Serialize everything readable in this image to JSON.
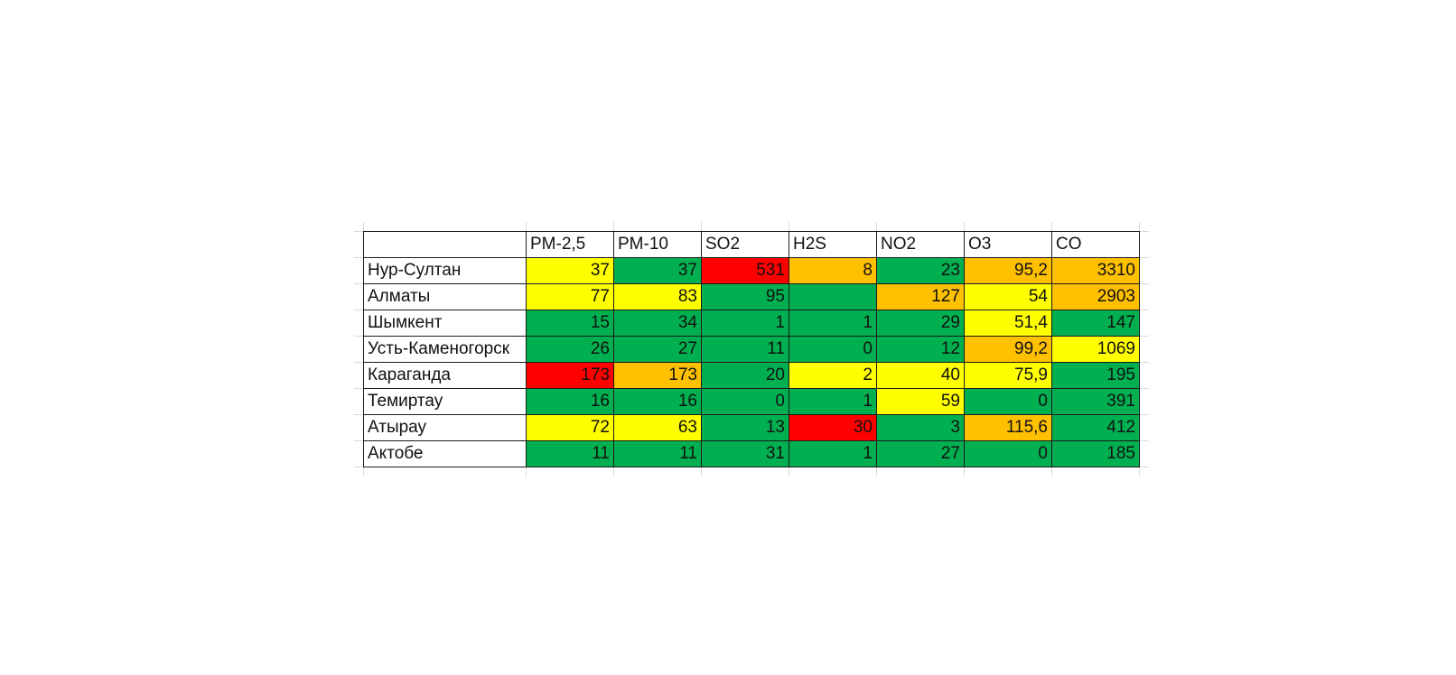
{
  "colors": {
    "green": "#00b050",
    "yellow": "#ffff00",
    "orange": "#ffc000",
    "red": "#ff0000",
    "blank": "#ffffff"
  },
  "chart_data": {
    "type": "table",
    "title": "",
    "columns": [
      "",
      "PM-2,5",
      "PM-10",
      "SO2",
      "H2S",
      "NO2",
      "O3",
      "CO"
    ],
    "rows": [
      {
        "city": "Нур-Султан",
        "values": [
          "37",
          "37",
          "531",
          "8",
          "23",
          "95,2",
          "3310"
        ],
        "levels": [
          "yellow",
          "green",
          "red",
          "orange",
          "green",
          "orange",
          "orange"
        ]
      },
      {
        "city": "Алматы",
        "values": [
          "77",
          "83",
          "95",
          "",
          "127",
          "54",
          "2903"
        ],
        "levels": [
          "yellow",
          "yellow",
          "green",
          "green",
          "orange",
          "yellow",
          "orange"
        ]
      },
      {
        "city": "Шымкент",
        "values": [
          "15",
          "34",
          "1",
          "1",
          "29",
          "51,4",
          "147"
        ],
        "levels": [
          "green",
          "green",
          "green",
          "green",
          "green",
          "yellow",
          "green"
        ]
      },
      {
        "city": "Усть-Каменогорск",
        "values": [
          "26",
          "27",
          "11",
          "0",
          "12",
          "99,2",
          "1069"
        ],
        "levels": [
          "green",
          "green",
          "green",
          "green",
          "green",
          "orange",
          "yellow"
        ]
      },
      {
        "city": "Караганда",
        "values": [
          "173",
          "173",
          "20",
          "2",
          "40",
          "75,9",
          "195"
        ],
        "levels": [
          "red",
          "orange",
          "green",
          "yellow",
          "yellow",
          "yellow",
          "green"
        ]
      },
      {
        "city": "Темиртау",
        "values": [
          "16",
          "16",
          "0",
          "1",
          "59",
          "0",
          "391"
        ],
        "levels": [
          "green",
          "green",
          "green",
          "green",
          "yellow",
          "green",
          "green"
        ]
      },
      {
        "city": "Атырау",
        "values": [
          "72",
          "63",
          "13",
          "30",
          "3",
          "115,6",
          "412"
        ],
        "levels": [
          "yellow",
          "yellow",
          "green",
          "red",
          "green",
          "orange",
          "green"
        ]
      },
      {
        "city": "Актобе",
        "values": [
          "11",
          "11",
          "31",
          "1",
          "27",
          "0",
          "185"
        ],
        "levels": [
          "green",
          "green",
          "green",
          "green",
          "green",
          "green",
          "green"
        ]
      }
    ]
  }
}
